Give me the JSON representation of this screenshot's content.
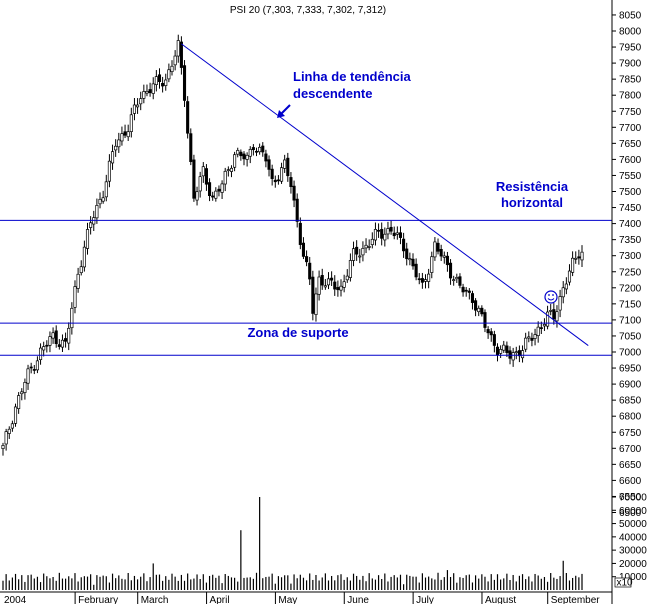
{
  "chart_data": {
    "type": "candlestick",
    "title": "PSI 20 (7,303, 7,333, 7,302, 7,312)",
    "price_axis": {
      "ticks": [
        "8050",
        "8000",
        "7950",
        "7900",
        "7850",
        "7800",
        "7750",
        "7700",
        "7650",
        "7600",
        "7550",
        "7500",
        "7450",
        "7400",
        "7350",
        "7300",
        "7250",
        "7200",
        "7150",
        "7100",
        "7050",
        "7000",
        "6950",
        "6900",
        "6850",
        "6800",
        "6750",
        "6700",
        "6650",
        "6600",
        "6550",
        "6500"
      ],
      "ylim": [
        6480,
        8060
      ]
    },
    "volume_axis": {
      "ticks": [
        "70000",
        "60000",
        "50000",
        "40000",
        "30000",
        "20000",
        "10000"
      ],
      "unit_label": "x10",
      "ylim": [
        0,
        78000
      ]
    },
    "x_axis": {
      "months": [
        "2004",
        "February",
        "March",
        "April",
        "May",
        "June",
        "July",
        "August",
        "September"
      ]
    },
    "horizontal_levels": [
      7410,
      7090,
      6990
    ],
    "trendline": {
      "start": {
        "x": 57,
        "y": 7960
      },
      "end": {
        "x": 187,
        "y": 7020
      }
    },
    "annotations": {
      "trend_label_line1": "Linha de tendência",
      "trend_label_line2": "descendente",
      "resistance_line1": "Resistência",
      "resistance_line2": "horizontal",
      "support": "Zona de suporte"
    },
    "close_anchors": [
      [
        0,
        6700
      ],
      [
        4,
        6830
      ],
      [
        8,
        6930
      ],
      [
        12,
        7000
      ],
      [
        16,
        7050
      ],
      [
        20,
        7020
      ],
      [
        24,
        7250
      ],
      [
        28,
        7400
      ],
      [
        32,
        7500
      ],
      [
        36,
        7650
      ],
      [
        40,
        7700
      ],
      [
        44,
        7800
      ],
      [
        48,
        7830
      ],
      [
        52,
        7850
      ],
      [
        56,
        7950
      ],
      [
        58,
        7800
      ],
      [
        61,
        7480
      ],
      [
        64,
        7560
      ],
      [
        67,
        7480
      ],
      [
        70,
        7520
      ],
      [
        74,
        7620
      ],
      [
        78,
        7600
      ],
      [
        80,
        7650
      ],
      [
        84,
        7600
      ],
      [
        86,
        7530
      ],
      [
        90,
        7580
      ],
      [
        92,
        7520
      ],
      [
        94,
        7410
      ],
      [
        96,
        7300
      ],
      [
        98,
        7220
      ],
      [
        99,
        7130
      ],
      [
        101,
        7230
      ],
      [
        104,
        7210
      ],
      [
        108,
        7200
      ],
      [
        112,
        7300
      ],
      [
        116,
        7330
      ],
      [
        120,
        7370
      ],
      [
        124,
        7380
      ],
      [
        128,
        7330
      ],
      [
        132,
        7240
      ],
      [
        134,
        7200
      ],
      [
        138,
        7330
      ],
      [
        142,
        7270
      ],
      [
        146,
        7200
      ],
      [
        150,
        7170
      ],
      [
        154,
        7080
      ],
      [
        158,
        7010
      ],
      [
        162,
        6990
      ],
      [
        166,
        7010
      ],
      [
        170,
        7060
      ],
      [
        174,
        7110
      ],
      [
        176,
        7110
      ],
      [
        179,
        7200
      ],
      [
        182,
        7270
      ],
      [
        184,
        7312
      ]
    ],
    "volume_spikes": {
      "48": 20000,
      "76": 45000,
      "82": 70000,
      "142": 15000,
      "179": 22000
    }
  }
}
